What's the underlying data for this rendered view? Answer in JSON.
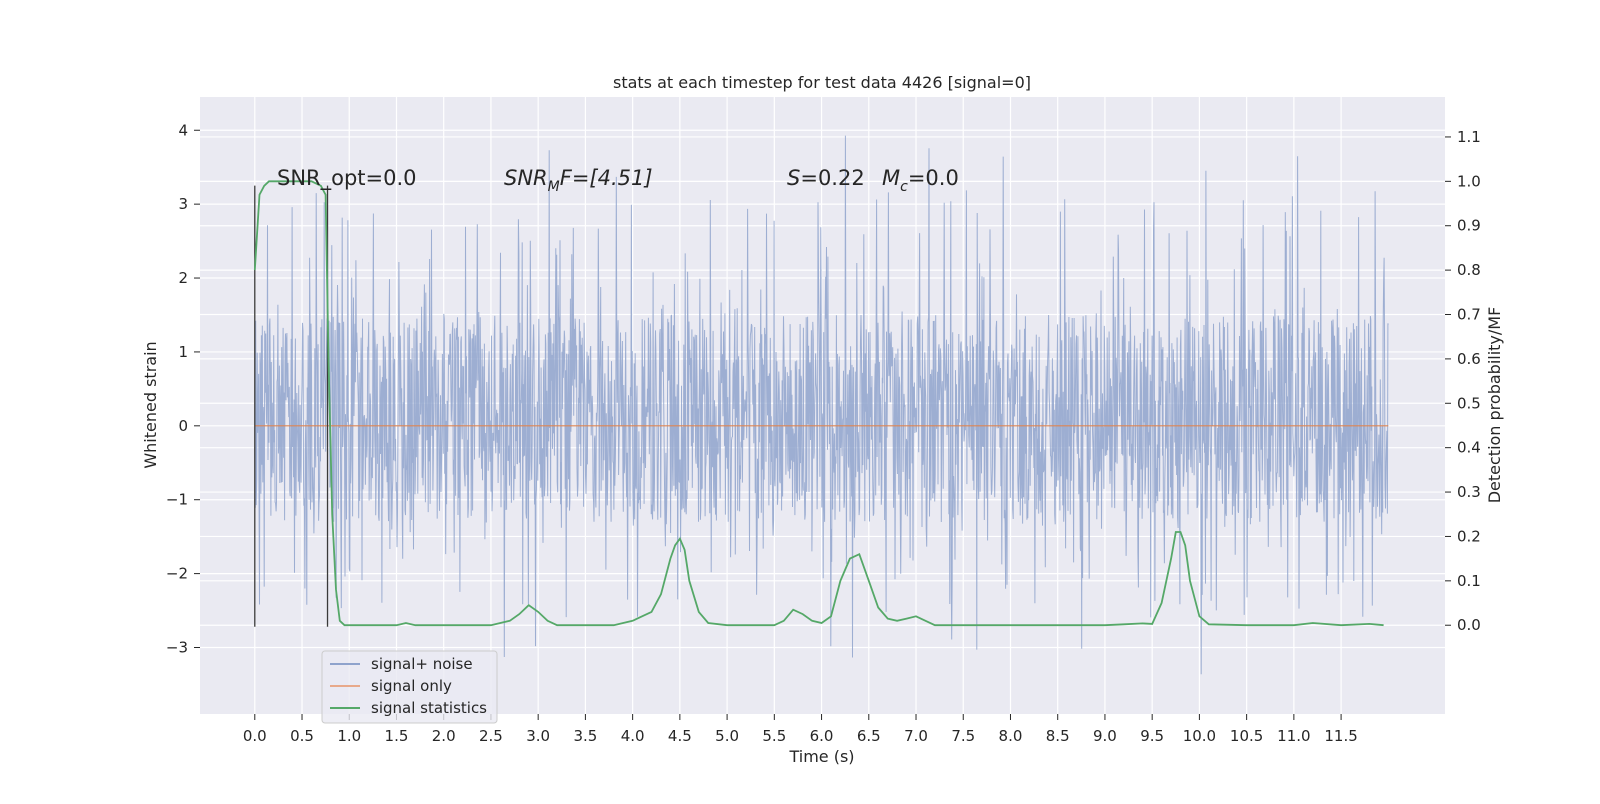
{
  "chart_data": {
    "type": "line",
    "title": "stats at each timestep for test data 4426 [signal=0]",
    "xlabel": "Time (s)",
    "ylabel_left": "Whitened strain",
    "ylabel_right": "Detection probability/MF",
    "xlim": [
      -0.58,
      12.6
    ],
    "ylim_left": [
      -3.9,
      4.45
    ],
    "ylim_right": [
      -0.2,
      1.19
    ],
    "x_ticks": [
      "0.0",
      "0.5",
      "1.0",
      "1.5",
      "2.0",
      "2.5",
      "3.0",
      "3.5",
      "4.0",
      "4.5",
      "5.0",
      "5.5",
      "6.0",
      "6.5",
      "7.0",
      "7.5",
      "8.0",
      "8.5",
      "9.0",
      "9.5",
      "10.0",
      "10.5",
      "11.0",
      "11.5"
    ],
    "y_ticks_left": [
      "−3",
      "−2",
      "−1",
      "0",
      "1",
      "2",
      "3",
      "4"
    ],
    "y_ticks_right": [
      "0.0",
      "0.1",
      "0.2",
      "0.3",
      "0.4",
      "0.5",
      "0.6",
      "0.7",
      "0.8",
      "0.9",
      "1.0",
      "1.1"
    ],
    "grid": true,
    "legend_placement": "lower-left",
    "colors": {
      "background": "#eaeaf2",
      "signal_noise": "#8fa3cc",
      "signal_only": "#dd8452",
      "signal_statistics": "#55a868",
      "marker_line": "#3a3a3a"
    },
    "annotations": {
      "snr_opt": "SNR_opt=0.0",
      "snr_mf_name": "SNR",
      "snr_mf_sub": "M",
      "snr_mf_rest": "F=[4.51]",
      "s_name": "S",
      "s_value": "=0.22",
      "mc_name": "M",
      "mc_sub": "c",
      "mc_value": "=0.0"
    },
    "vertical_markers": [
      {
        "x": 0.0,
        "y_range": [
          -2.72,
          3.25
        ]
      },
      {
        "x": 0.77,
        "y_range": [
          -2.72,
          3.25
        ]
      }
    ],
    "series": [
      {
        "name": "signal+ noise",
        "axis": "left",
        "x_range": [
          0.0,
          12.0
        ],
        "description_envelope": {
          "dense_band": [
            -1.3,
            1.5
          ],
          "spike_extremes": [
            -3.5,
            4.1
          ]
        }
      },
      {
        "name": "signal only",
        "axis": "left",
        "x": [
          0.0,
          12.0
        ],
        "y": [
          0.0,
          0.0
        ]
      },
      {
        "name": "signal statistics",
        "axis": "right",
        "x": [
          0.0,
          0.05,
          0.1,
          0.15,
          0.2,
          0.3,
          0.4,
          0.5,
          0.6,
          0.7,
          0.75,
          0.78,
          0.82,
          0.86,
          0.9,
          0.95,
          1.0,
          1.2,
          1.5,
          1.6,
          1.7,
          1.8,
          2.0,
          2.5,
          2.7,
          2.8,
          2.9,
          3.0,
          3.1,
          3.2,
          3.5,
          3.8,
          4.0,
          4.2,
          4.3,
          4.4,
          4.45,
          4.5,
          4.55,
          4.6,
          4.7,
          4.8,
          5.0,
          5.5,
          5.6,
          5.7,
          5.8,
          5.9,
          6.0,
          6.1,
          6.2,
          6.3,
          6.4,
          6.5,
          6.6,
          6.7,
          6.8,
          6.9,
          7.0,
          7.1,
          7.2,
          7.5,
          8.0,
          8.5,
          9.0,
          9.2,
          9.4,
          9.5,
          9.6,
          9.7,
          9.75,
          9.8,
          9.85,
          9.9,
          10.0,
          10.1,
          10.5,
          11.0,
          11.2,
          11.5,
          11.8,
          11.95
        ],
        "y": [
          0.8,
          0.97,
          0.99,
          1.0,
          1.0,
          1.0,
          1.0,
          1.0,
          1.0,
          0.99,
          0.97,
          0.6,
          0.25,
          0.08,
          0.01,
          0.0,
          0.0,
          0.0,
          0.0,
          0.005,
          0.0,
          0.0,
          0.0,
          0.0,
          0.01,
          0.025,
          0.045,
          0.03,
          0.01,
          0.0,
          0.0,
          0.0,
          0.01,
          0.03,
          0.07,
          0.15,
          0.18,
          0.195,
          0.17,
          0.1,
          0.03,
          0.005,
          0.0,
          0.0,
          0.01,
          0.035,
          0.025,
          0.01,
          0.005,
          0.02,
          0.1,
          0.15,
          0.16,
          0.1,
          0.04,
          0.015,
          0.01,
          0.015,
          0.02,
          0.01,
          0.0,
          0.0,
          0.0,
          0.0,
          0.0,
          0.002,
          0.004,
          0.003,
          0.05,
          0.15,
          0.21,
          0.21,
          0.18,
          0.1,
          0.02,
          0.002,
          0.0,
          0.0,
          0.005,
          0.0,
          0.003,
          0.0
        ]
      }
    ]
  }
}
